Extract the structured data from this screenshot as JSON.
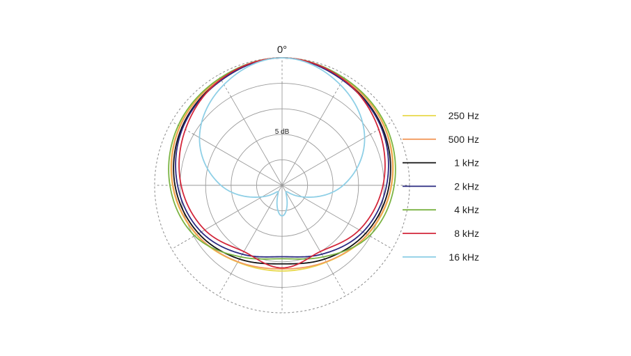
{
  "chart_data": {
    "type": "polar",
    "angle_zero_label": "0°",
    "ring_label": "5 dB",
    "rlim": [
      -25,
      0
    ],
    "ring_step_db": 5,
    "angle_step_deg": 30,
    "grid": true,
    "legend_position": "right",
    "angles": [
      0,
      30,
      60,
      90,
      120,
      150,
      180,
      210,
      240,
      270,
      300,
      330
    ],
    "series": [
      {
        "name": "250 Hz",
        "color": "#e8d84a",
        "values": [
          0,
          -0.8,
          -1.8,
          -3.5,
          -5.6,
          -7.6,
          -8.2,
          -7.6,
          -5.6,
          -3.5,
          -1.8,
          -0.8
        ]
      },
      {
        "name": "500 Hz",
        "color": "#f29a5c",
        "values": [
          0,
          -0.9,
          -1.9,
          -3.6,
          -5.7,
          -7.7,
          -8.6,
          -7.7,
          -5.7,
          -3.6,
          -1.9,
          -0.9
        ]
      },
      {
        "name": "1 kHz",
        "color": "#111111",
        "values": [
          0,
          -1.1,
          -2.3,
          -4.0,
          -6.1,
          -8.3,
          -9.6,
          -8.3,
          -6.1,
          -4.0,
          -2.3,
          -1.1
        ]
      },
      {
        "name": "2 kHz",
        "color": "#2a2a80",
        "values": [
          0,
          -1.2,
          -2.5,
          -4.5,
          -6.7,
          -9.4,
          -11.0,
          -9.4,
          -6.7,
          -4.5,
          -2.5,
          -1.2
        ]
      },
      {
        "name": "4 kHz",
        "color": "#7ab342",
        "values": [
          0,
          -0.7,
          -1.5,
          -3.0,
          -5.2,
          -8.8,
          -10.6,
          -8.8,
          -5.2,
          -3.0,
          -1.5,
          -0.7
        ]
      },
      {
        "name": "8 kHz",
        "color": "#d3263a",
        "values": [
          0,
          -1.0,
          -3.1,
          -5.2,
          -7.5,
          -10.0,
          -8.8,
          -10.0,
          -7.5,
          -5.2,
          -3.1,
          -1.0
        ]
      },
      {
        "name": "16 kHz",
        "color": "#8ecfe6",
        "values": [
          0,
          -2.2,
          -6.3,
          -13.0,
          -20.5,
          -23.5,
          -19.0,
          -23.5,
          -20.5,
          -13.0,
          -6.3,
          -2.2
        ]
      }
    ]
  }
}
